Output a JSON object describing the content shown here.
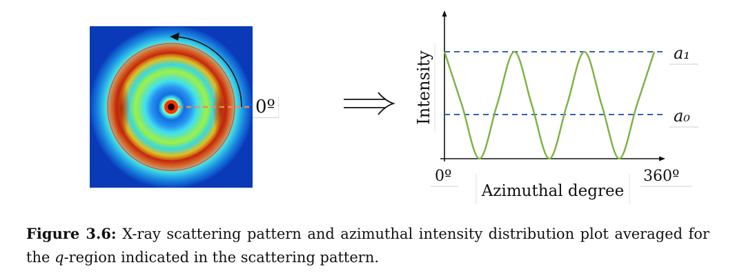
{
  "pattern": {
    "angle_label": "0º"
  },
  "plot": {
    "ylabel": "Intensity",
    "xlabel": "Azimuthal degree",
    "xtick_start": "0º",
    "xtick_end": "360º",
    "level_high": "a₁",
    "level_low": "a₀"
  },
  "chart_data": {
    "type": "line",
    "x": [
      0,
      30,
      60,
      90,
      120,
      150,
      180,
      210,
      240,
      270,
      300,
      330,
      360
    ],
    "series": [
      {
        "values": [
          1.0,
          0.5,
          0.0,
          0.5,
          1.0,
          0.5,
          0.0,
          0.5,
          1.0,
          0.5,
          0.0,
          0.5,
          1.0
        ]
      }
    ],
    "xlabel": "Azimuthal degree",
    "ylabel": "Intensity",
    "reference_levels": [
      "a₁",
      "a₀"
    ],
    "colors": {
      "curve": "#7cb342",
      "reference": "#2e5fb8"
    }
  },
  "caption": {
    "label": "Figure 3.6:",
    "text_before_q": "X-ray scattering pattern and azimuthal intensity distribution plot averaged for the ",
    "q": "q",
    "text_after_q": "-region indicated in the scattering pattern."
  }
}
